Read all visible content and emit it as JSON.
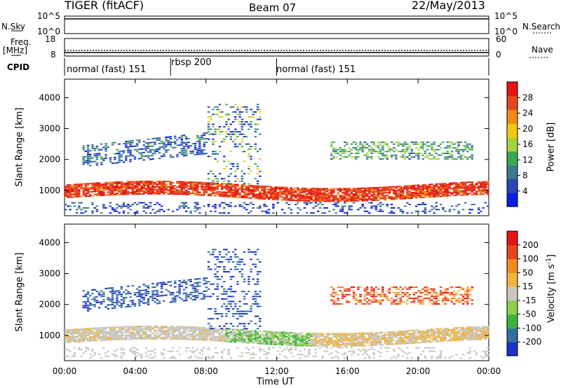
{
  "header": {
    "radar": "TIGER (fitACF)",
    "beam": "Beam 07",
    "date": "22/May/2013"
  },
  "side_labels": {
    "nsky": "N.Sky",
    "freq_line1": "Freq.",
    "freq_line2": "[MHz]",
    "cpid": "CPID",
    "nsearch": "N.Search",
    "nave": "Nave"
  },
  "nsky_axis": {
    "top": "10^5",
    "bottom": "10^0"
  },
  "freq_axis": {
    "top": "18",
    "bottom": "8"
  },
  "nave_axis": {
    "top": "60",
    "bottom": "0"
  },
  "cpid_segments": [
    {
      "label": "normal (fast) 151",
      "start_h": 0,
      "end_h": 6
    },
    {
      "label": "rbsp 200",
      "start_h": 6,
      "end_h": 12
    },
    {
      "label": "normal (fast) 151",
      "start_h": 12,
      "end_h": 24
    }
  ],
  "chart_data": [
    {
      "type": "heatmap",
      "name": "power",
      "ylabel": "Slant Range [km]",
      "yticks": [
        1000,
        2000,
        3000,
        4000
      ],
      "ylim": [
        180,
        4600
      ],
      "xlim": [
        0,
        24
      ],
      "colorbar": {
        "label": "Power [dB]",
        "ticks": [
          "4",
          "8",
          "12",
          "16",
          "20",
          "24",
          "28"
        ],
        "colors": [
          "#0a1ee6",
          "#2a46b4",
          "#3a7a8c",
          "#3aa850",
          "#a8d23c",
          "#f0c814",
          "#f08c14",
          "#e6461e",
          "#e61414"
        ]
      }
    },
    {
      "type": "heatmap",
      "name": "velocity",
      "ylabel": "Slant Range [km]",
      "yticks": [
        1000,
        2000,
        3000,
        4000
      ],
      "ylim": [
        180,
        4600
      ],
      "xlim": [
        0,
        24
      ],
      "xlabel": "Time UT",
      "xticks": [
        "00:00",
        "04:00",
        "08:00",
        "12:00",
        "16:00",
        "20:00",
        "00:00"
      ],
      "colorbar": {
        "label": "Velocity [m s^-1]",
        "ticks": [
          "200",
          "100",
          "50",
          "15",
          "-15",
          "-50",
          "-100",
          "-200"
        ],
        "colors": [
          "#1e32c8",
          "#3270a0",
          "#3cb43c",
          "#8ccf4a",
          "#c8c8c0",
          "#f0b440",
          "#f08c1e",
          "#e6461e",
          "#e61414"
        ]
      }
    }
  ]
}
